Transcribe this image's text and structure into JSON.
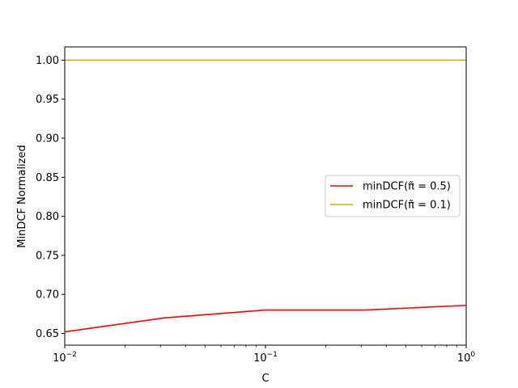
{
  "chart_data": {
    "type": "line",
    "title": "",
    "xlabel": "C",
    "ylabel": "MinDCF Normalized",
    "xscale": "log",
    "xlim": [
      0.01,
      1
    ],
    "ylim": [
      0.635,
      1.017
    ],
    "grid": false,
    "legend_position": "center-right",
    "x": [
      0.01,
      0.0316,
      0.1,
      0.316,
      1
    ],
    "x_ticks": [
      {
        "value": 0.01,
        "base": "10",
        "exp": "−2"
      },
      {
        "value": 0.1,
        "base": "10",
        "exp": "−1"
      },
      {
        "value": 1,
        "base": "10",
        "exp": "0"
      }
    ],
    "y_ticks": [
      {
        "value": 0.65,
        "label": "0.65"
      },
      {
        "value": 0.7,
        "label": "0.70"
      },
      {
        "value": 0.75,
        "label": "0.75"
      },
      {
        "value": 0.8,
        "label": "0.80"
      },
      {
        "value": 0.85,
        "label": "0.85"
      },
      {
        "value": 0.9,
        "label": "0.90"
      },
      {
        "value": 0.95,
        "label": "0.95"
      },
      {
        "value": 1.0,
        "label": "1.00"
      }
    ],
    "series": [
      {
        "name": "minDCF(π̃ = 0.5)",
        "color": "#ff0000",
        "values": [
          0.652,
          0.67,
          0.68,
          0.68,
          0.686
        ]
      },
      {
        "name": "minDCF(π̃ = 0.1)",
        "color": "#c8b400",
        "values": [
          1.0,
          1.0,
          1.0,
          1.0,
          1.0
        ]
      }
    ]
  }
}
